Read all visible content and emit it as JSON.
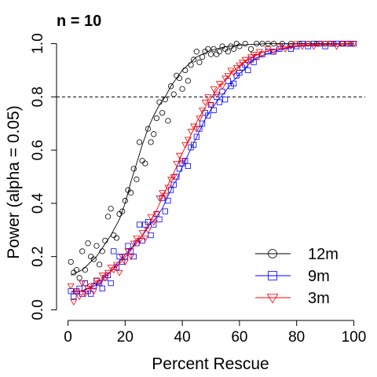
{
  "chart_data": {
    "type": "scatter",
    "title": "n = 10",
    "xlabel": "Percent Rescue",
    "ylabel": "Power (alpha = 0.05)",
    "xlim": [
      -4,
      104
    ],
    "ylim": [
      -0.04,
      1.04
    ],
    "xticks": [
      0,
      20,
      40,
      60,
      80,
      100
    ],
    "yticks": [
      0.0,
      0.2,
      0.4,
      0.6,
      0.8,
      1.0
    ],
    "xtick_labels": [
      "0",
      "20",
      "40",
      "60",
      "80",
      "100"
    ],
    "ytick_labels": [
      "0.0",
      "0.2",
      "0.4",
      "0.6",
      "0.8",
      "1.0"
    ],
    "reference_line": {
      "y": 0.8,
      "style": "dashed"
    },
    "grid": false,
    "legend_position": "bottom-right",
    "series": [
      {
        "name": "12m",
        "marker": "circle",
        "color": "#000000",
        "x": [
          1,
          2,
          3,
          4,
          5,
          6,
          7,
          8,
          9,
          10,
          11,
          12,
          13,
          14,
          15,
          16,
          17,
          18,
          19,
          20,
          21,
          22,
          23,
          24,
          25,
          26,
          27,
          28,
          29,
          30,
          31,
          32,
          33,
          34,
          35,
          36,
          37,
          38,
          39,
          40,
          41,
          42,
          43,
          44,
          45,
          46,
          47,
          48,
          49,
          50,
          51,
          52,
          53,
          54,
          55,
          56,
          57,
          58,
          59,
          60,
          62,
          64,
          66,
          68,
          70,
          72,
          75,
          78,
          81,
          84,
          87,
          90,
          93,
          96,
          99
        ],
        "y": [
          0.18,
          0.14,
          0.15,
          0.12,
          0.22,
          0.15,
          0.25,
          0.2,
          0.19,
          0.24,
          0.17,
          0.22,
          0.26,
          0.35,
          0.38,
          0.28,
          0.27,
          0.36,
          0.37,
          0.41,
          0.45,
          0.44,
          0.53,
          0.49,
          0.63,
          0.56,
          0.55,
          0.68,
          0.63,
          0.66,
          0.72,
          0.78,
          0.74,
          0.79,
          0.71,
          0.84,
          0.81,
          0.88,
          0.87,
          0.83,
          0.9,
          0.86,
          0.92,
          0.94,
          0.97,
          0.93,
          0.95,
          0.97,
          0.98,
          0.96,
          0.98,
          0.96,
          0.97,
          0.99,
          0.98,
          0.97,
          0.99,
          0.98,
          1.0,
          0.99,
          1.0,
          0.98,
          1.0,
          1.0,
          1.0,
          1.0,
          1.0,
          1.0,
          1.0,
          1.0,
          1.0,
          1.0,
          1.0,
          1.0,
          1.0
        ],
        "fit": [
          [
            1,
            0.13
          ],
          [
            5,
            0.15
          ],
          [
            10,
            0.2
          ],
          [
            15,
            0.28
          ],
          [
            18,
            0.34
          ],
          [
            20,
            0.4
          ],
          [
            22,
            0.48
          ],
          [
            24,
            0.55
          ],
          [
            26,
            0.62
          ],
          [
            28,
            0.68
          ],
          [
            30,
            0.73
          ],
          [
            32,
            0.77
          ],
          [
            34,
            0.8
          ],
          [
            36,
            0.84
          ],
          [
            38,
            0.87
          ],
          [
            40,
            0.9
          ],
          [
            45,
            0.95
          ],
          [
            50,
            0.975
          ],
          [
            55,
            0.988
          ],
          [
            60,
            0.995
          ],
          [
            70,
            1.0
          ],
          [
            100,
            1.0
          ]
        ]
      },
      {
        "name": "9m",
        "marker": "square",
        "color": "#0000ff",
        "x": [
          1,
          2,
          3,
          4,
          5,
          6,
          7,
          8,
          9,
          10,
          11,
          12,
          13,
          14,
          15,
          16,
          17,
          18,
          19,
          20,
          21,
          22,
          23,
          24,
          25,
          26,
          27,
          28,
          29,
          30,
          31,
          32,
          33,
          34,
          35,
          36,
          37,
          38,
          39,
          40,
          41,
          42,
          43,
          44,
          45,
          46,
          47,
          48,
          49,
          50,
          51,
          52,
          53,
          54,
          55,
          56,
          57,
          58,
          59,
          60,
          61,
          62,
          63,
          64,
          65,
          66,
          68,
          70,
          72,
          74,
          76,
          78,
          80,
          82,
          84,
          86,
          88,
          90,
          92,
          94,
          96,
          98,
          100
        ],
        "y": [
          0.07,
          0.05,
          0.07,
          0.08,
          0.06,
          0.1,
          0.07,
          0.06,
          0.09,
          0.11,
          0.1,
          0.08,
          0.12,
          0.13,
          0.1,
          0.22,
          0.16,
          0.2,
          0.18,
          0.2,
          0.24,
          0.22,
          0.2,
          0.25,
          0.32,
          0.26,
          0.32,
          0.33,
          0.28,
          0.32,
          0.36,
          0.34,
          0.42,
          0.37,
          0.41,
          0.45,
          0.47,
          0.5,
          0.53,
          0.55,
          0.56,
          0.54,
          0.61,
          0.62,
          0.65,
          0.68,
          0.7,
          0.74,
          0.73,
          0.77,
          0.75,
          0.8,
          0.78,
          0.82,
          0.79,
          0.86,
          0.84,
          0.85,
          0.88,
          0.89,
          0.91,
          0.92,
          0.9,
          0.94,
          0.93,
          0.95,
          0.96,
          0.97,
          0.97,
          0.98,
          0.99,
          0.98,
          0.99,
          1.0,
          0.99,
          1.0,
          1.0,
          0.99,
          1.0,
          1.0,
          1.0,
          1.0,
          1.0
        ]
      },
      {
        "name": "3m",
        "marker": "triangle-down",
        "color": "#ff0000",
        "x": [
          1,
          2,
          3,
          4,
          5,
          6,
          7,
          8,
          9,
          10,
          11,
          12,
          13,
          14,
          15,
          16,
          17,
          18,
          19,
          20,
          21,
          22,
          23,
          24,
          25,
          26,
          27,
          28,
          29,
          30,
          31,
          32,
          33,
          34,
          35,
          36,
          37,
          38,
          39,
          40,
          41,
          42,
          43,
          44,
          45,
          46,
          47,
          48,
          49,
          50,
          51,
          52,
          53,
          54,
          55,
          56,
          57,
          58,
          59,
          60,
          61,
          62,
          63,
          64,
          65,
          66,
          67,
          68,
          70,
          72,
          74,
          76,
          78,
          80,
          82,
          84,
          86,
          88,
          90,
          92,
          94,
          96,
          98,
          100
        ],
        "y": [
          0.09,
          0.03,
          0.07,
          0.05,
          0.1,
          0.06,
          0.08,
          0.09,
          0.07,
          0.11,
          0.1,
          0.13,
          0.12,
          0.14,
          0.16,
          0.15,
          0.17,
          0.14,
          0.2,
          0.18,
          0.22,
          0.2,
          0.25,
          0.27,
          0.26,
          0.29,
          0.27,
          0.3,
          0.35,
          0.33,
          0.36,
          0.42,
          0.44,
          0.43,
          0.46,
          0.49,
          0.5,
          0.55,
          0.58,
          0.56,
          0.62,
          0.64,
          0.67,
          0.69,
          0.68,
          0.72,
          0.75,
          0.78,
          0.8,
          0.77,
          0.83,
          0.81,
          0.85,
          0.84,
          0.87,
          0.88,
          0.9,
          0.89,
          0.91,
          0.92,
          0.93,
          0.94,
          0.93,
          0.95,
          0.96,
          0.95,
          0.97,
          0.96,
          0.98,
          0.97,
          0.99,
          0.98,
          0.99,
          1.0,
          0.99,
          1.0,
          0.99,
          1.0,
          1.0,
          1.0,
          0.99,
          1.0,
          1.0,
          1.0
        ]
      }
    ],
    "legend": [
      {
        "label": "12m",
        "marker": "circle",
        "color": "#000000"
      },
      {
        "label": "9m",
        "marker": "square",
        "color": "#0000ff"
      },
      {
        "label": "3m",
        "marker": "triangle-down",
        "color": "#ff0000"
      }
    ]
  }
}
